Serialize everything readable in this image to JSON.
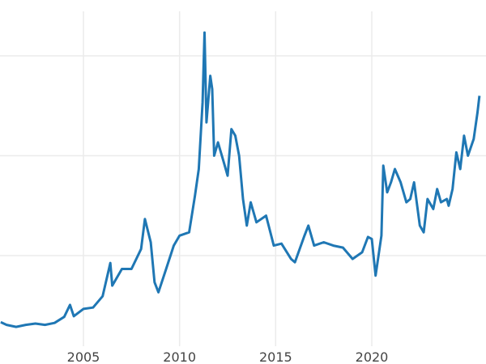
{
  "chart_data": {
    "type": "line",
    "title": "",
    "xlabel": "",
    "ylabel": "",
    "x_tick_labels": [
      "2005",
      "2010",
      "2015",
      "2020"
    ],
    "x_ticks": [
      2005,
      2010,
      2015,
      2020
    ],
    "y_gridlines": [
      15,
      30,
      45
    ],
    "y_tick_labels_shown": false,
    "xlim": [
      2000.65,
      2025.65
    ],
    "ylim": [
      1.5,
      50
    ],
    "grid": true,
    "line_color": "#1f77b4",
    "series": [
      {
        "x": [
          2000.7,
          2001,
          2001.5,
          2002,
          2002.5,
          2003,
          2003.5,
          2004,
          2004.3,
          2004.5,
          2005,
          2005.5,
          2006,
          2006.4,
          2006.5,
          2007,
          2007.5,
          2008,
          2008.2,
          2008.5,
          2008.7,
          2008.9,
          2009.3,
          2009.7,
          2010,
          2010.5,
          2010.8,
          2011,
          2011.2,
          2011.3,
          2011.4,
          2011.6,
          2011.7,
          2011.8,
          2012,
          2012.3,
          2012.5,
          2012.7,
          2012.9,
          2013.1,
          2013.3,
          2013.5,
          2013.7,
          2014,
          2014.5,
          2014.9,
          2015.3,
          2015.8,
          2016,
          2016.5,
          2016.7,
          2017,
          2017.5,
          2018,
          2018.5,
          2019,
          2019.5,
          2019.8,
          2020,
          2020.2,
          2020.5,
          2020.6,
          2020.8,
          2021,
          2021.2,
          2021.5,
          2021.8,
          2022,
          2022.2,
          2022.5,
          2022.7,
          2022.9,
          2023.2,
          2023.4,
          2023.6,
          2023.9,
          2024,
          2024.2,
          2024.4,
          2024.6,
          2024.8,
          2025,
          2025.3,
          2025.5,
          2025.6
        ],
        "y": [
          5.0,
          4.6,
          4.3,
          4.6,
          4.8,
          4.6,
          4.9,
          5.8,
          7.6,
          5.9,
          7.0,
          7.2,
          8.9,
          13.9,
          10.5,
          13.0,
          13.0,
          16.0,
          20.5,
          17.0,
          11.0,
          9.5,
          13.0,
          16.5,
          18.0,
          18.5,
          24.0,
          28.0,
          38.0,
          48.5,
          35.0,
          42.0,
          40.0,
          30.0,
          32.0,
          29.0,
          27.0,
          34.0,
          33.0,
          30.0,
          23.5,
          19.5,
          23.0,
          20.0,
          21.0,
          16.5,
          16.8,
          14.5,
          14.0,
          18.0,
          19.5,
          16.5,
          17.0,
          16.5,
          16.2,
          14.5,
          15.5,
          17.8,
          17.5,
          12.0,
          18.0,
          28.5,
          24.5,
          26.0,
          28.0,
          26.0,
          23.0,
          23.5,
          26.0,
          19.5,
          18.5,
          23.5,
          22.0,
          25.0,
          23.0,
          23.5,
          22.5,
          25.0,
          30.5,
          28.0,
          33.0,
          30.0,
          32.5,
          36.5,
          39.0
        ]
      }
    ]
  }
}
